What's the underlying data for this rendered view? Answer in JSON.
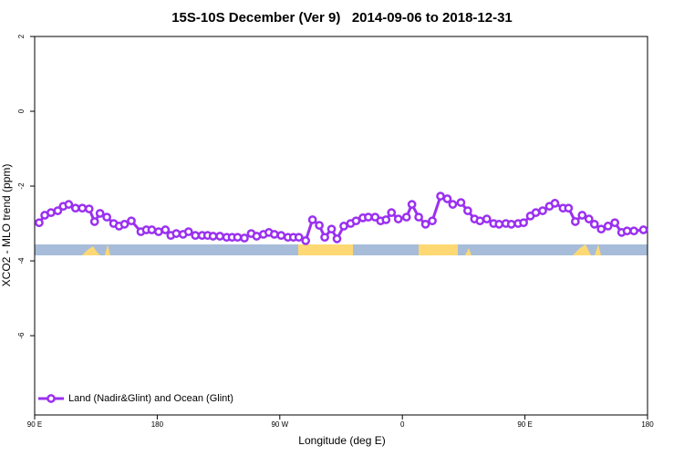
{
  "chart_data": {
    "type": "line",
    "title": "15S-10S December (Ver 9)   2014-09-06 to 2018-12-31",
    "xlabel": "Longitude (deg E)",
    "ylabel": "XCO2 - MLO trend (ppm)",
    "x": [
      93.3,
      97.4,
      102,
      107,
      111,
      115,
      120,
      125,
      130,
      134,
      138,
      143,
      148,
      152,
      156,
      161,
      168,
      172,
      176,
      181,
      186,
      190,
      194,
      199,
      203,
      208,
      213,
      217,
      221,
      226,
      231,
      235,
      239,
      244,
      249,
      253,
      258,
      262,
      266,
      271,
      276,
      280,
      284,
      289,
      294,
      299,
      303,
      308,
      312,
      317,
      322,
      326,
      331,
      335,
      340,
      344,
      348,
      352,
      357,
      363,
      367,
      372,
      377,
      382,
      388,
      393,
      397,
      403,
      408,
      413,
      417,
      422,
      427,
      431,
      436,
      440,
      445,
      449,
      454,
      458,
      463,
      468,
      472,
      478,
      482,
      487,
      492,
      497,
      501,
      506,
      511,
      516,
      521,
      525,
      530,
      537
    ],
    "series": [
      {
        "name": "Land (Nadir&Glint) and Ocean (Glint)",
        "color": "#9b30f0",
        "values": [
          -2.98,
          -2.78,
          -2.71,
          -2.66,
          -2.54,
          -2.49,
          -2.59,
          -2.59,
          -2.61,
          -2.95,
          -2.73,
          -2.83,
          -3.0,
          -3.07,
          -3.02,
          -2.93,
          -3.22,
          -3.17,
          -3.17,
          -3.22,
          -3.17,
          -3.32,
          -3.27,
          -3.29,
          -3.22,
          -3.32,
          -3.32,
          -3.32,
          -3.34,
          -3.34,
          -3.37,
          -3.37,
          -3.37,
          -3.39,
          -3.27,
          -3.34,
          -3.29,
          -3.24,
          -3.29,
          -3.32,
          -3.37,
          -3.37,
          -3.37,
          -3.46,
          -2.9,
          -3.05,
          -3.37,
          -3.15,
          -3.41,
          -3.07,
          -3.0,
          -2.93,
          -2.85,
          -2.83,
          -2.83,
          -2.93,
          -2.9,
          -2.71,
          -2.88,
          -2.83,
          -2.49,
          -2.83,
          -3.02,
          -2.93,
          -2.27,
          -2.34,
          -2.49,
          -2.44,
          -2.66,
          -2.88,
          -2.93,
          -2.88,
          -3.0,
          -3.02,
          -3.0,
          -3.02,
          -3.0,
          -2.98,
          -2.8,
          -2.71,
          -2.66,
          -2.54,
          -2.46,
          -2.59,
          -2.59,
          -2.95,
          -2.78,
          -2.88,
          -3.02,
          -3.15,
          -3.07,
          -2.98,
          -3.24,
          -3.2,
          -3.2,
          -3.17
        ]
      }
    ],
    "xlim": [
      90,
      540
    ],
    "xticks": [
      {
        "value": 90,
        "label": "90 E"
      },
      180,
      {
        "value": 270,
        "label": "90 W"
      },
      {
        "value": 360,
        "label": "0"
      },
      {
        "value": 450,
        "label": "90 E"
      },
      {
        "value": 540,
        "label": "180"
      }
    ],
    "ylim": [
      -8.12,
      2
    ],
    "yticks": [
      -6,
      -4,
      -2,
      0,
      2
    ],
    "legend": "lower left"
  }
}
